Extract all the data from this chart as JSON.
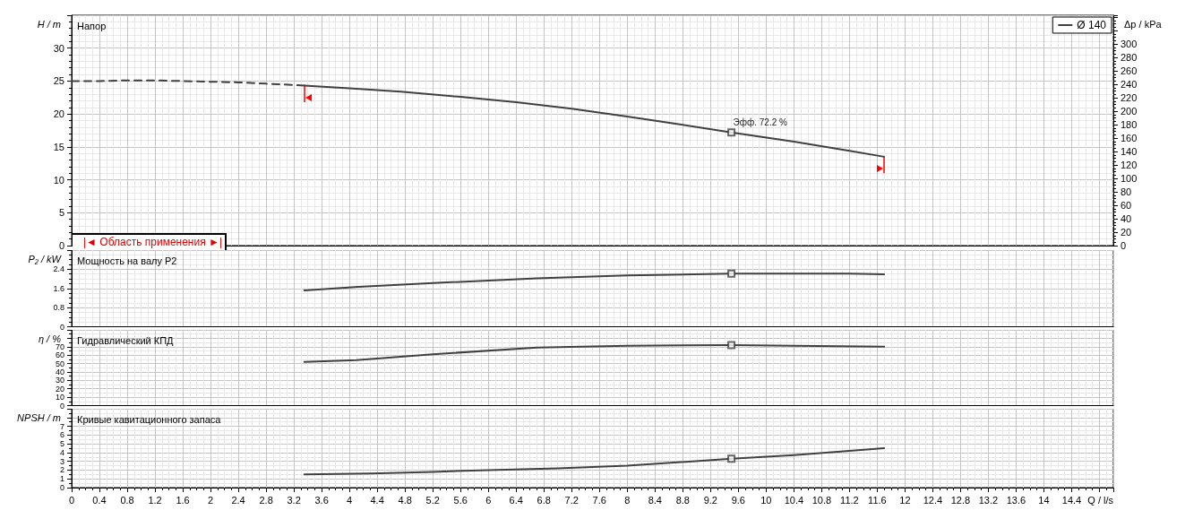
{
  "chart_data": [
    {
      "type": "line",
      "title": "Напор",
      "ylabel": "H / m",
      "y2label": "Δp / kPa",
      "xlim": [
        0,
        15
      ],
      "ylim": [
        0,
        35
      ],
      "yticks": [
        0,
        5,
        10,
        15,
        20,
        25,
        30
      ],
      "y2lim": [
        0,
        343
      ],
      "y2ticks": [
        0,
        20,
        40,
        60,
        80,
        100,
        120,
        140,
        160,
        180,
        200,
        220,
        240,
        260,
        280,
        300
      ],
      "grid": true,
      "legend": "top right",
      "tick_labels": "y",
      "marker": "none",
      "series": [
        {
          "color": "#404040",
          "line_style": "dashed",
          "x": [
            0,
            0.4,
            0.8,
            1.2,
            1.6,
            2,
            2.4,
            2.8,
            3.2,
            3.35
          ],
          "values": [
            25,
            25,
            25.1,
            25.1,
            25,
            24.9,
            24.8,
            24.6,
            24.4,
            24.3
          ]
        },
        {
          "name": "Ø 140",
          "color": "#404040",
          "line_style": "solid",
          "x": [
            3.35,
            4,
            4.74,
            5.6,
            6.4,
            7.2,
            8,
            8.65,
            9.5,
            10.4,
            11.2,
            11.7
          ],
          "values": [
            24.3,
            23.9,
            23.4,
            22.6,
            21.8,
            20.8,
            19.6,
            18.6,
            17.2,
            15.8,
            14.4,
            13.5
          ]
        },
        {
          "type": "scatter",
          "marker": "square",
          "color": "#404040",
          "x": [
            9.5
          ],
          "values": [
            17.2
          ]
        }
      ],
      "annotations": [
        {
          "text": "Эфф. 72.2 %",
          "x": 9.5,
          "y": 17.2
        },
        "|◄ Область применения ►|"
      ]
    },
    {
      "type": "line",
      "title": "Мощность на валу P2",
      "ylabel": "P₂ / kW",
      "xlim": [
        0,
        15
      ],
      "ylim": [
        0,
        3.2
      ],
      "yticks": [
        0,
        0.8,
        1.6,
        2.4
      ],
      "grid": true,
      "tick_labels": "y",
      "marker": "none",
      "series": [
        {
          "color": "#404040",
          "x": [
            3.35,
            4.13,
            5.4,
            6.7,
            8,
            9.5,
            11.2,
            11.7
          ],
          "values": [
            1.52,
            1.67,
            1.85,
            2.02,
            2.14,
            2.22,
            2.22,
            2.19
          ]
        },
        {
          "type": "scatter",
          "marker": "square",
          "color": "#404040",
          "x": [
            9.5
          ],
          "values": [
            2.22
          ]
        }
      ]
    },
    {
      "type": "line",
      "title": "Гидравлический КПД",
      "ylabel": "η / %",
      "xlim": [
        0,
        15
      ],
      "ylim": [
        0,
        90
      ],
      "yticks": [
        0,
        10,
        20,
        30,
        40,
        50,
        60,
        70
      ],
      "grid": true,
      "tick_labels": "y",
      "marker": "none",
      "series": [
        {
          "color": "#404040",
          "x": [
            3.35,
            4.1,
            5.2,
            6.7,
            8,
            9.5,
            10.4,
            11.7
          ],
          "values": [
            52,
            54,
            61,
            69,
            71,
            72,
            71,
            70
          ]
        },
        {
          "type": "scatter",
          "marker": "square",
          "color": "#404040",
          "x": [
            9.5
          ],
          "values": [
            72
          ]
        }
      ]
    },
    {
      "type": "line",
      "title": "Кривые кавитационного запаса",
      "ylabel": "NPSH / m",
      "xlabel": "Q / l/s",
      "xlim": [
        0,
        15
      ],
      "xticks": [
        0,
        0.4,
        0.8,
        1.2,
        1.6,
        2,
        2.4,
        2.8,
        3.2,
        3.6,
        4,
        4.4,
        4.8,
        5.2,
        5.6,
        6,
        6.4,
        6.8,
        7.2,
        7.6,
        8,
        8.4,
        8.8,
        9.2,
        9.6,
        10,
        10.4,
        10.8,
        11.2,
        11.6,
        12,
        12.4,
        12.8,
        13.2,
        13.6,
        14,
        14.4
      ],
      "ylim": [
        0,
        9
      ],
      "yticks": [
        0,
        1,
        2,
        3,
        4,
        5,
        6,
        7
      ],
      "grid": true,
      "marker": "none",
      "series": [
        {
          "color": "#404040",
          "x": [
            3.35,
            4.3,
            5.2,
            6,
            7,
            8,
            9.5,
            10.4,
            11.7
          ],
          "values": [
            1.5,
            1.6,
            1.8,
            2,
            2.2,
            2.5,
            3.3,
            3.7,
            4.5
          ]
        },
        {
          "type": "scatter",
          "marker": "square",
          "color": "#404040",
          "x": [
            9.5
          ],
          "values": [
            3.3
          ]
        }
      ]
    }
  ]
}
